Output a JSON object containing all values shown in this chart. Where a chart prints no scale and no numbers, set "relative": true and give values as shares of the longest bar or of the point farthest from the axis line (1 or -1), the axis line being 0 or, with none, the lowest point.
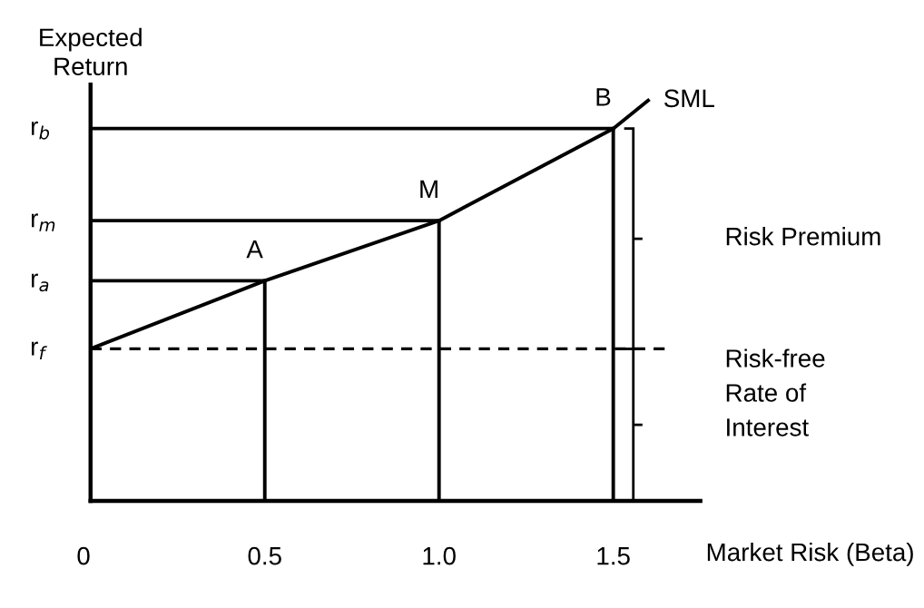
{
  "chart_data": {
    "type": "line",
    "relative": true,
    "xlabel": "Market Risk (Beta)",
    "ylabel": "Expected\nReturn",
    "xlim": [
      0,
      1.75
    ],
    "xticks": [
      {
        "value": 0,
        "label": "0"
      },
      0.5,
      {
        "value": 1.0,
        "label": "1.0"
      },
      1.5
    ],
    "series": [
      {
        "name": "SML",
        "color": "#000000",
        "x": [
          0,
          0.5,
          1.0,
          1.5,
          1.6
        ],
        "values": [
          0.38,
          0.55,
          0.7,
          0.93,
          1.0
        ]
      },
      {
        "color": "#000000",
        "x": [
          0,
          0.5
        ],
        "values": [
          0.55,
          0.55
        ]
      },
      {
        "color": "#000000",
        "x": [
          0.5,
          0.5
        ],
        "values": [
          0,
          0.55
        ]
      },
      {
        "color": "#000000",
        "x": [
          0,
          1.0
        ],
        "values": [
          0.7,
          0.7
        ]
      },
      {
        "color": "#000000",
        "x": [
          1.0,
          1.0
        ],
        "values": [
          0,
          0.7
        ]
      },
      {
        "color": "#000000",
        "x": [
          0,
          1.5
        ],
        "values": [
          0.93,
          0.93
        ]
      },
      {
        "color": "#000000",
        "x": [
          1.5,
          1.5
        ],
        "values": [
          0,
          0.93
        ]
      }
    ],
    "ref_lines": [
      {
        "axis": "y",
        "value": 0.38,
        "color": "#000000",
        "line_style": "dashed"
      }
    ],
    "annotations": [
      {
        "text": "r$_{f}$",
        "x": 0,
        "y": 0.38
      },
      {
        "text": "r$_{a}$",
        "x": 0,
        "y": 0.55
      },
      {
        "text": "r$_{m}$",
        "x": 0,
        "y": 0.7
      },
      {
        "text": "r$_{b}$",
        "x": 0,
        "y": 0.93
      },
      {
        "text": "A",
        "x": 0.5,
        "y": 0.55
      },
      {
        "text": "M",
        "x": 1.0,
        "y": 0.7
      },
      {
        "text": "B",
        "x": 1.5,
        "y": 0.93
      },
      "Risk Premium",
      "Risk-free\nRate of\nInterest"
    ],
    "legend": false,
    "grid": false
  }
}
